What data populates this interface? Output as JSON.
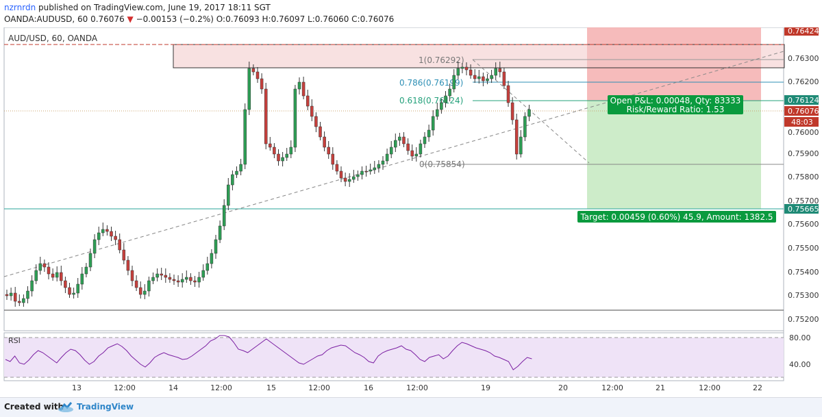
{
  "header": {
    "username": "nzrnrdn",
    "published_text": " published on TradingView.com, June 19, 2017 18:11 SGT",
    "symbol": "OANDA:AUDUSD, 60 ",
    "last": "0.76076",
    "down_arrow": "▼",
    "change": " −0.00153 (−0.2%) ",
    "ohlc": "O:0.76093 H:0.76097 L:0.76060 C:0.76076"
  },
  "chart": {
    "legend": "AUD/USD, 60, OANDA",
    "rsi_label": "RSI",
    "price_axis": [
      "0.76300",
      "0.76200",
      "0.76000",
      "0.75900",
      "0.75800",
      "0.75700",
      "0.75600",
      "0.75500",
      "0.75400",
      "0.75300",
      "0.75200"
    ],
    "price_tags": {
      "top": "0.76424",
      "upper": "0.76124",
      "current": "0.76076",
      "countdown": "48:03",
      "lower": "0.75665"
    },
    "rsi_axis": [
      "80.00",
      "40.00"
    ],
    "time_axis": [
      "13",
      "12:00",
      "14",
      "12:00",
      "15",
      "12:00",
      "16",
      "12:00",
      "19",
      "20",
      "12:00",
      "21",
      "12:00",
      "22"
    ],
    "fib_levels": [
      "1(0.76292)",
      "0.786(0.76199)",
      "0.618(0.76124)",
      "0(0.75854)"
    ],
    "position_box": {
      "pnl_line1": "Open P&L: 0.00048, Qty: 83333",
      "pnl_line2": "Risk/Reward Ratio: 1.53",
      "target_label": "Target: 0.00459 (0.60%) 45.9, Amount: 1382.5"
    },
    "colors": {
      "up": "#26a69a",
      "up_body": "#2e9e55",
      "down": "#c6403d",
      "rsi_line": "#7b1fa2",
      "rsi_fill": "#efe3f7",
      "stop_zone": "#f6b9b9",
      "target_zone": "#cbeacb",
      "pill_green": "#009e3c"
    }
  },
  "footer": {
    "created_with": "Created with",
    "brand": "TradingView",
    "logo_icon": "tradingview-cloud-icon"
  }
}
